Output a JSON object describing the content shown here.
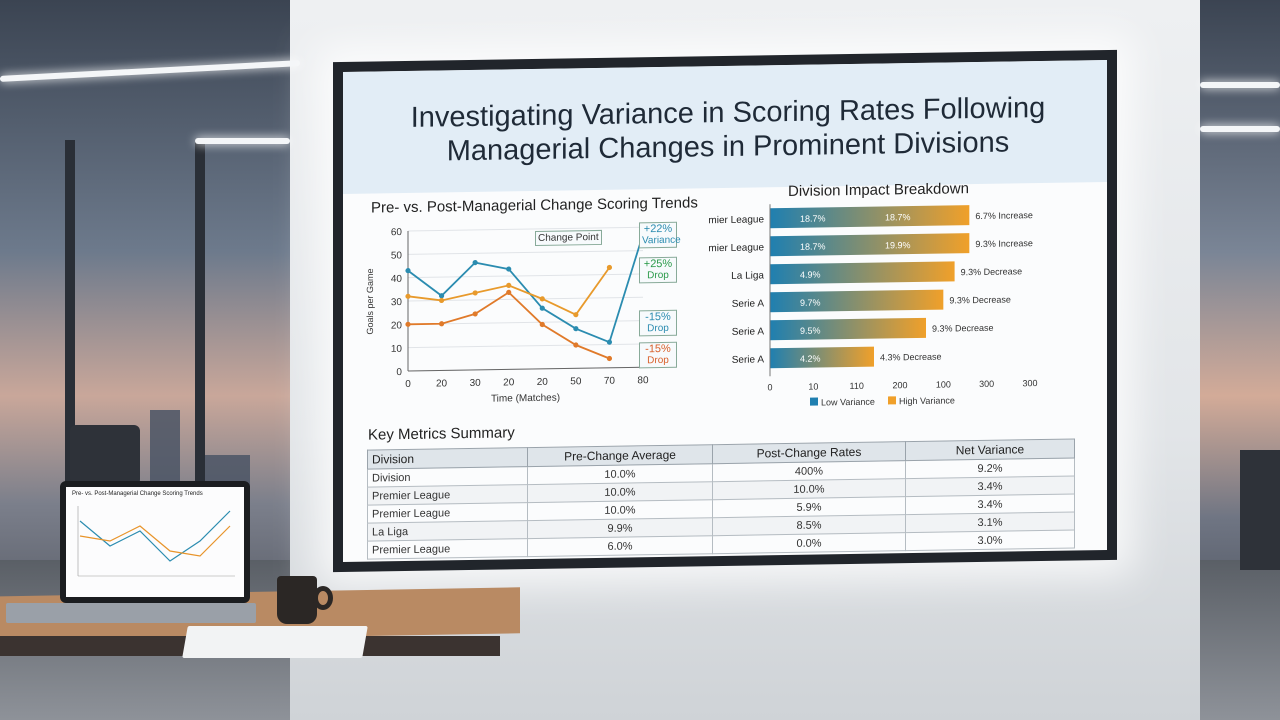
{
  "slide": {
    "title": "Investigating Variance in Scoring Rates Following Managerial Changes in Prominent Divisions"
  },
  "line_chart": {
    "title": "Pre- vs. Post-Managerial Change Scoring Trends",
    "annotation_change_point": "Change Point",
    "callouts": [
      {
        "pct": "+22%",
        "label": "Variance"
      },
      {
        "pct": "+25%",
        "label": "Drop"
      },
      {
        "pct": "-15%",
        "label": "Drop"
      },
      {
        "pct": "-15%",
        "label": "Drop"
      }
    ]
  },
  "bar_chart": {
    "title": "Division Impact Breakdown"
  },
  "metrics": {
    "title": "Key Metrics Summary",
    "columns": [
      "Division",
      "Pre-Change Average",
      "Post-Change Rates",
      "Net Variance"
    ],
    "rows": [
      [
        "Division",
        "10.0%",
        "400%",
        "9.2%"
      ],
      [
        "Premier League",
        "10.0%",
        "10.0%",
        "3.4%"
      ],
      [
        "Premier League",
        "10.0%",
        "5.9%",
        "3.4%"
      ],
      [
        "La Liga",
        "9.9%",
        "8.5%",
        "3.1%"
      ],
      [
        "Premier League",
        "6.0%",
        "0.0%",
        "3.0%"
      ]
    ]
  },
  "laptop": {
    "chart_title": "Pre- vs. Post-Managerial Change Scoring Trends"
  },
  "chart_data": [
    {
      "type": "line",
      "title": "Pre- vs. Post-Managerial Change Scoring Trends",
      "xlabel": "Time (Matches)",
      "ylabel": "Goals per Game",
      "x_ticks": [
        "0",
        "20",
        "30",
        "20",
        "20",
        "50",
        "70",
        "80"
      ],
      "y_ticks": [
        0,
        10,
        20,
        30,
        40,
        50,
        60
      ],
      "ylim": [
        0,
        60
      ],
      "series": [
        {
          "color": "#2b8cb0",
          "values": [
            43,
            32,
            46,
            43,
            26,
            17,
            11,
            57
          ]
        },
        {
          "color": "#e89a2c",
          "values": [
            32,
            30,
            33,
            36,
            30,
            23,
            43
          ]
        },
        {
          "color": "#e07a2a",
          "values": [
            20,
            20,
            24,
            33,
            19,
            10,
            4
          ]
        }
      ],
      "colors": {
        "teal": "#2b8cb0",
        "orange": "#e8942a"
      }
    },
    {
      "type": "bar",
      "title": "Division Impact Breakdown",
      "categories": [
        "Premier League",
        "Premier League",
        "La Liga",
        "Serie A",
        "Serie A",
        "Serie A"
      ],
      "values": [
        230,
        230,
        213,
        200,
        180,
        120
      ],
      "bar_labels_left": [
        "18.7%",
        "18.7%",
        "4.9%",
        "9.7%",
        "9.5%",
        "4.2%"
      ],
      "bar_labels_mid": [
        "18.7%",
        "19.9%",
        "",
        "",
        "",
        ""
      ],
      "end_labels": [
        "6.7% Increase",
        "9.3% Increase",
        "9.3% Decrease",
        "9.3% Decrease",
        "9.3% Decrease",
        "4.3% Decrease"
      ],
      "x_ticks": [
        "0",
        "10",
        "110",
        "200",
        "100",
        "300",
        "300"
      ],
      "legend": [
        {
          "name": "Low Variance",
          "color": "#1f7fb0"
        },
        {
          "name": "High Variance",
          "color": "#f0a02a"
        }
      ],
      "legend_position": "bottom"
    }
  ]
}
